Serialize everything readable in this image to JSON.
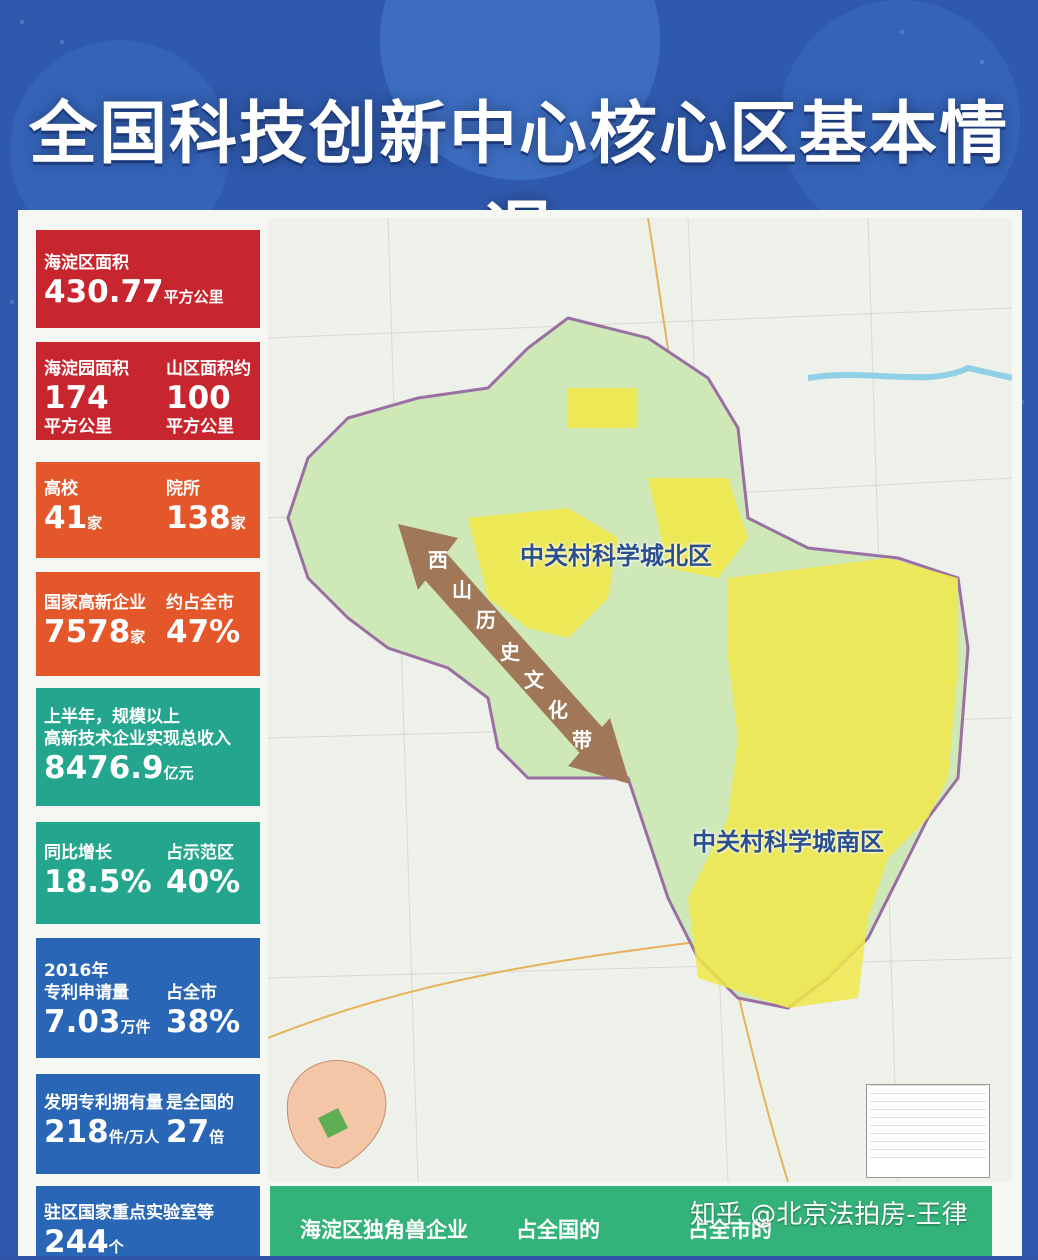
{
  "title": "全国科技创新中心核心区基本情况",
  "cards": [
    {
      "label": "海淀区面积",
      "value": "430.77",
      "unit": "平方公里"
    },
    {
      "left_label": "海淀园面积",
      "left_value": "174",
      "left_unit": "平方公里",
      "right_label": "山区面积约",
      "right_value": "100",
      "right_unit": "平方公里"
    },
    {
      "left_label": "高校",
      "left_value": "41",
      "left_unit": "家",
      "right_label": "院所",
      "right_value": "138",
      "right_unit": "家"
    },
    {
      "left_label": "国家高新企业",
      "left_value": "7578",
      "left_unit": "家",
      "right_label": "约占全市",
      "right_value": "47%"
    },
    {
      "label1": "上半年，规模以上",
      "label2": "高新技术企业实现总收入",
      "value": "8476.9",
      "unit": "亿元"
    },
    {
      "left_label": "同比增长",
      "left_value": "18.5%",
      "right_label": "占示范区",
      "right_value": "40%"
    },
    {
      "year": "2016年",
      "left_label": "专利申请量",
      "left_value": "7.03",
      "left_unit": "万件",
      "right_label": "占全市",
      "right_value": "38%"
    },
    {
      "left_label": "发明专利拥有量",
      "left_value": "218",
      "left_unit": "件/万人",
      "right_label": "是全国的",
      "right_value": "27",
      "right_unit": "倍"
    },
    {
      "label": "驻区国家重点实验室等",
      "value": "244",
      "unit": "个"
    }
  ],
  "map": {
    "north_zone": "中关村科学城北区",
    "south_zone": "中关村科学城南区",
    "corridor": [
      "西",
      "山",
      "历",
      "史",
      "文",
      "化",
      "带"
    ]
  },
  "bottom": {
    "label1": "海淀区独角兽企业",
    "label2": "占全国的",
    "label3": "占全市的"
  },
  "watermark": "知乎 @北京法拍房-王律",
  "colors": {
    "red": "#c8262f",
    "orange": "#e4572b",
    "teal": "#23a58e",
    "blue": "#2a66b6",
    "zone_yellow": "#f0e84a",
    "land_green": "#cfe8b8"
  }
}
